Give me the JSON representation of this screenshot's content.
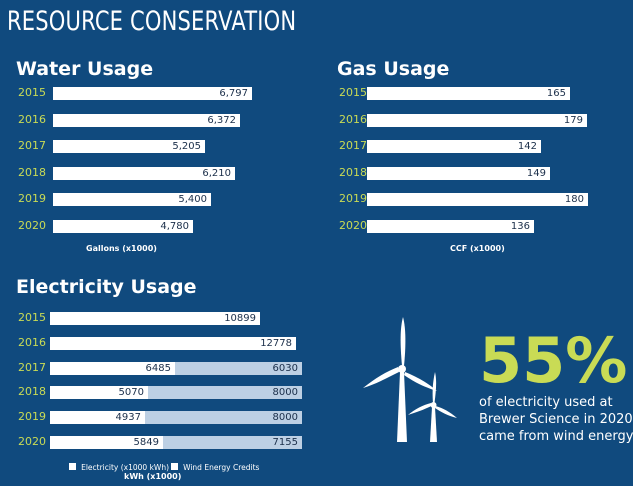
{
  "header": {
    "title": "RESOURCE CONSERVATION"
  },
  "chart_data": [
    {
      "type": "bar",
      "title": "Water Usage",
      "categories": [
        "2015",
        "2016",
        "2017",
        "2018",
        "2019",
        "2020"
      ],
      "values": [
        6797,
        6372,
        5205,
        6210,
        5400,
        4780
      ],
      "labels": [
        "6,797",
        "6,372",
        "5,205",
        "6,210",
        "5,400",
        "4,780"
      ],
      "xlabel": "Gallons (x1000)",
      "xlim": [
        0,
        6797
      ],
      "colors": {
        "bar": "#ffffff",
        "year": "#c9db55"
      }
    },
    {
      "type": "bar",
      "title": "Gas Usage",
      "categories": [
        "2015",
        "2016",
        "2017",
        "2018",
        "2019",
        "2020"
      ],
      "values": [
        165,
        179,
        142,
        149,
        180,
        136
      ],
      "labels": [
        "165",
        "179",
        "142",
        "149",
        "180",
        "136"
      ],
      "xlabel": "CCF (x1000)",
      "xlim": [
        0,
        180
      ]
    },
    {
      "type": "bar",
      "title": "Electricity Usage",
      "categories": [
        "2015",
        "2016",
        "2017",
        "2018",
        "2019",
        "2020"
      ],
      "series": [
        {
          "name": "Electricity (x1000 kWh)",
          "values": [
            10899,
            12778,
            6485,
            5070,
            4937,
            5849
          ],
          "labels": [
            "10899",
            "12778",
            "6485",
            "5070",
            "4937",
            "5849"
          ],
          "color": "#ffffff"
        },
        {
          "name": "Wind Energy Credits",
          "values": [
            0,
            0,
            6030,
            8000,
            8000,
            7155
          ],
          "labels": [
            "",
            "",
            "6030",
            "8000",
            "8000",
            "7155"
          ],
          "color": "#bdd0e4"
        }
      ],
      "xlabel": "kWh (x1000)",
      "xlim": [
        0,
        13070
      ],
      "stacked": true
    }
  ],
  "stat": {
    "percent": "55%",
    "lines": [
      "of electricity used at",
      "Brewer Science in 2020",
      "came from wind energy"
    ]
  }
}
